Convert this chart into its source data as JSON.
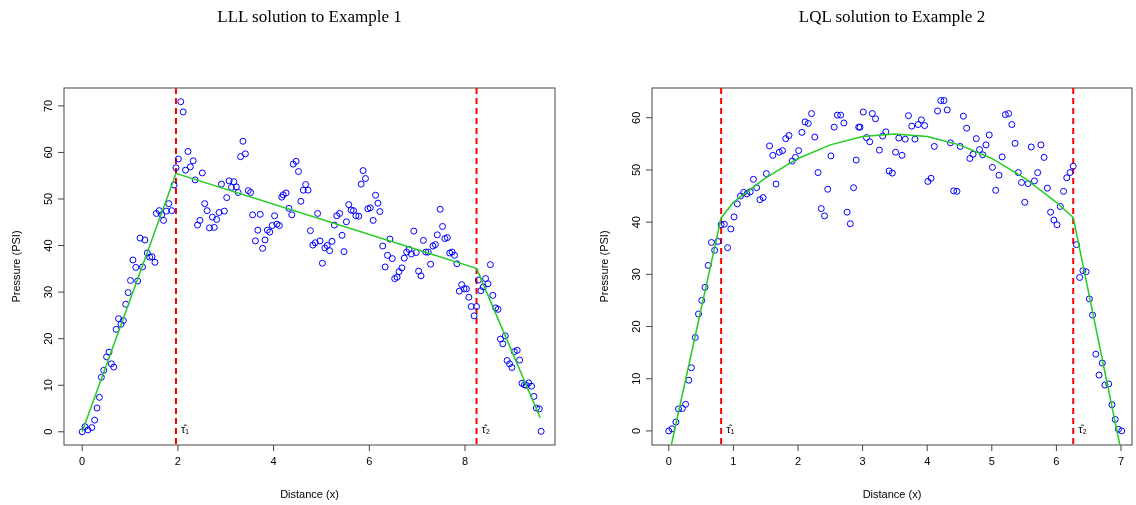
{
  "chart_data": [
    {
      "type": "scatter",
      "title": "LLL solution to Example 1",
      "xlabel": "Distance (x)",
      "ylabel": "Pressure (PSI)",
      "xlim": [
        -0.38,
        9.88
      ],
      "ylim": [
        -2.84,
        73.84
      ],
      "xticks": [
        0,
        2,
        4,
        6,
        8
      ],
      "yticks": [
        0,
        10,
        20,
        30,
        40,
        50,
        60,
        70
      ],
      "marker": "circle",
      "series": [
        {
          "color": "#0000ff",
          "x": [
            0,
            0.06,
            0.12,
            0.2,
            0.26,
            0.31,
            0.36,
            0.4,
            0.45,
            0.51,
            0.56,
            0.61,
            0.66,
            0.71,
            0.76,
            0.81,
            0.86,
            0.91,
            0.96,
            1.01,
            1.06,
            1.12,
            1.16,
            1.21,
            1.26,
            1.31,
            1.36,
            1.41,
            1.46,
            1.52,
            1.55,
            1.61,
            1.66,
            1.7,
            1.76,
            1.81,
            1.87,
            1.92,
            1.96,
            2.01,
            2.06,
            2.11,
            2.16,
            2.21,
            2.26,
            2.32,
            2.36,
            2.41,
            2.46,
            2.51,
            2.56,
            2.61,
            2.66,
            2.72,
            2.76,
            2.81,
            2.86,
            2.91,
            2.97,
            3.02,
            3.07,
            3.12,
            3.17,
            3.22,
            3.26,
            3.31,
            3.36,
            3.41,
            3.47,
            3.52,
            3.56,
            3.62,
            3.67,
            3.72,
            3.77,
            3.82,
            3.87,
            3.92,
            3.97,
            4.02,
            4.07,
            4.12,
            4.17,
            4.2,
            4.26,
            4.32,
            4.38,
            4.41,
            4.47,
            4.52,
            4.57,
            4.62,
            4.67,
            4.72,
            4.77,
            4.82,
            4.87,
            4.92,
            4.97,
            5.02,
            5.07,
            5.12,
            5.17,
            5.22,
            5.27,
            5.32,
            5.38,
            5.43,
            5.47,
            5.52,
            5.57,
            5.62,
            5.67,
            5.72,
            5.78,
            5.83,
            5.87,
            5.92,
            5.97,
            6.02,
            6.08,
            6.13,
            6.18,
            6.22,
            6.28,
            6.33,
            6.38,
            6.43,
            6.48,
            6.53,
            6.58,
            6.62,
            6.68,
            6.73,
            6.78,
            6.83,
            6.88,
            6.93,
            6.98,
            7.03,
            7.08,
            7.13,
            7.18,
            7.23,
            7.28,
            7.33,
            7.38,
            7.42,
            7.48,
            7.53,
            7.58,
            7.63,
            7.68,
            7.73,
            7.78,
            7.83,
            7.88,
            7.93,
            7.98,
            8.03,
            8.08,
            8.13,
            8.19,
            8.24,
            8.28,
            8.33,
            8.38,
            8.43,
            8.48,
            8.53,
            8.58,
            8.64,
            8.69,
            8.74,
            8.79,
            8.84,
            8.88,
            8.93,
            8.98,
            9.03,
            9.09,
            9.14,
            9.19,
            9.24,
            9.28,
            9.33,
            9.39,
            9.44,
            9.49,
            9.55,
            9.59
          ],
          "values": [
            0,
            1.1,
            0.4,
            0.9,
            2.5,
            5.1,
            7.4,
            11.7,
            13.2,
            16.1,
            17.1,
            14.6,
            13.9,
            22,
            24.3,
            23.1,
            23.9,
            27.4,
            29.9,
            32.5,
            36.9,
            35.3,
            32.4,
            41.6,
            35.4,
            41.2,
            38.4,
            37.5,
            37.6,
            36.4,
            46.9,
            47.5,
            46.6,
            45.4,
            47.4,
            49,
            47.5,
            53,
            56.7,
            58.6,
            70.9,
            68.7,
            56.2,
            60.2,
            56.9,
            58.2,
            54.1,
            44.4,
            45.4,
            55.6,
            49,
            47.5,
            43.8,
            46.1,
            43.9,
            45.6,
            47.1,
            53.2,
            47.4,
            50.3,
            53.9,
            52.5,
            53.7,
            52.6,
            51.4,
            59.1,
            62.4,
            59.7,
            51.8,
            51.4,
            46.6,
            41,
            43.3,
            46.7,
            39.4,
            41.2,
            43.3,
            42.9,
            44.3,
            46.4,
            44.6,
            44.3,
            50.4,
            50.9,
            51.3,
            48,
            46.6,
            57.5,
            58.1,
            55.9,
            49.5,
            51.9,
            53.1,
            51.9,
            43.2,
            40.1,
            40.6,
            46.9,
            41,
            36.2,
            39.5,
            40,
            38.9,
            40.9,
            44.4,
            46.4,
            46.9,
            42.2,
            38.7,
            45.1,
            48.8,
            47.6,
            47.5,
            46.4,
            46.3,
            53.2,
            56.1,
            54.4,
            47.9,
            48.1,
            45.4,
            50.8,
            49.1,
            47.3,
            39.9,
            35.4,
            37.9,
            41.4,
            37.2,
            32.9,
            33.2,
            34.4,
            35.2,
            37.3,
            38.6,
            39.2,
            38.2,
            43.1,
            38.5,
            34.5,
            33.5,
            41.1,
            38.6,
            38.6,
            36,
            39.9,
            40.2,
            42.3,
            47.8,
            44.1,
            41.5,
            41.7,
            38.4,
            38.6,
            37.9,
            36.1,
            30.2,
            31.6,
            30.7,
            30.7,
            28.9,
            26.9,
            24.9,
            26.9,
            32.6,
            30.3,
            31.1,
            32.9,
            31.8,
            35.9,
            29.3,
            26.6,
            26.3,
            19.9,
            18.9,
            20.6,
            15.3,
            14.6,
            13.8,
            17.2,
            17.5,
            15.4,
            10.4,
            10.1,
            10,
            10.5,
            9.8,
            7.6,
            5.1,
            4.9,
            0.1
          ]
        },
        {
          "type": "line",
          "color": "#22cc22",
          "marker": "none",
          "x": [
            0,
            1.96,
            8.24,
            9.57
          ],
          "values": [
            0,
            55.5,
            35.1,
            3
          ]
        }
      ],
      "ref_lines": [
        {
          "axis": "x",
          "value": 1.96,
          "label": "τ̂₁",
          "color": "#ff0000",
          "line_style": "dashed"
        },
        {
          "axis": "x",
          "value": 8.24,
          "label": "τ̂₂",
          "color": "#ff0000",
          "line_style": "dashed"
        }
      ]
    },
    {
      "type": "scatter",
      "title": "LQL solution to Example 2",
      "xlabel": "Distance (x)",
      "ylabel": "Pressure (PSI)",
      "xlim": [
        -0.26,
        7.17
      ],
      "ylim": [
        -2.7,
        65.7
      ],
      "xticks": [
        0,
        1,
        2,
        3,
        4,
        5,
        6,
        7
      ],
      "yticks": [
        0,
        10,
        20,
        30,
        40,
        50,
        60
      ],
      "marker": "circle",
      "series": [
        {
          "color": "#0000ff",
          "x": [
            0,
            0.05,
            0.11,
            0.15,
            0.21,
            0.26,
            0.31,
            0.35,
            0.41,
            0.46,
            0.51,
            0.56,
            0.61,
            0.66,
            0.71,
            0.76,
            0.81,
            0.86,
            0.91,
            0.96,
            1.01,
            1.06,
            1.11,
            1.16,
            1.21,
            1.26,
            1.31,
            1.36,
            1.41,
            1.46,
            1.51,
            1.56,
            1.61,
            1.66,
            1.71,
            1.76,
            1.81,
            1.86,
            1.91,
            1.96,
            2.01,
            2.06,
            2.11,
            2.16,
            2.21,
            2.26,
            2.31,
            2.36,
            2.41,
            2.46,
            2.51,
            2.56,
            2.61,
            2.66,
            2.71,
            2.76,
            2.81,
            2.86,
            2.9,
            2.94,
            2.96,
            3.01,
            3.06,
            3.11,
            3.15,
            3.2,
            3.26,
            3.31,
            3.36,
            3.41,
            3.46,
            3.51,
            3.56,
            3.61,
            3.66,
            3.71,
            3.76,
            3.81,
            3.86,
            3.91,
            3.96,
            4.01,
            4.06,
            4.11,
            4.16,
            4.21,
            4.26,
            4.31,
            4.36,
            4.41,
            4.46,
            4.51,
            4.56,
            4.61,
            4.66,
            4.71,
            4.76,
            4.81,
            4.86,
            4.91,
            4.96,
            5.01,
            5.06,
            5.11,
            5.16,
            5.21,
            5.26,
            5.31,
            5.36,
            5.41,
            5.46,
            5.51,
            5.56,
            5.61,
            5.66,
            5.71,
            5.76,
            5.81,
            5.86,
            5.91,
            5.96,
            6.01,
            6.06,
            6.11,
            6.16,
            6.21,
            6.26,
            6.31,
            6.36,
            6.41,
            6.46,
            6.51,
            6.56,
            6.61,
            6.66,
            6.71,
            6.75,
            6.81,
            6.86,
            6.91,
            6.96,
            7.01
          ],
          "values": [
            0,
            0.4,
            1.7,
            4.2,
            4.3,
            5.1,
            9.7,
            12.1,
            17.9,
            22.4,
            25,
            27.5,
            31.7,
            36.1,
            34.6,
            36.3,
            39.5,
            39.6,
            35.1,
            38.7,
            41,
            43.5,
            45,
            45.7,
            45.4,
            45.8,
            48.2,
            46.6,
            44.3,
            44.7,
            49.3,
            54.6,
            52.8,
            47.3,
            53.4,
            53.7,
            56,
            56.6,
            51.7,
            52.4,
            53.7,
            57.2,
            59.2,
            58.9,
            60.8,
            56.3,
            49.5,
            42.6,
            41.2,
            46.3,
            52.7,
            58.2,
            60.5,
            60.5,
            59,
            41.9,
            39.7,
            46.6,
            51.9,
            58.2,
            58.2,
            61.1,
            56.2,
            55.4,
            60.8,
            59.8,
            53.8,
            56.5,
            57.3,
            49.8,
            49.4,
            53.4,
            56.1,
            52.8,
            55.9,
            60.4,
            58.4,
            55.9,
            58.7,
            59.6,
            58.5,
            47.8,
            48.4,
            54.5,
            61.3,
            63.3,
            63.3,
            61.5,
            55.2,
            46,
            45.9,
            54.5,
            60.3,
            58,
            52.2,
            53,
            56,
            53.9,
            52.9,
            54.8,
            56.7,
            50.5,
            46.1,
            49,
            52.5,
            60.6,
            60.8,
            58.7,
            55.1,
            49.5,
            47.6,
            43.8,
            47.4,
            54.4,
            47.9,
            49.5,
            54.8,
            52.4,
            46.5,
            41.9,
            40.4,
            39.5,
            43,
            45.9,
            48.5,
            49.5,
            50.7,
            35.7,
            29.4,
            30.7,
            30.5,
            25.3,
            22.2,
            14.7,
            10.7,
            13,
            8.8,
            9,
            5,
            2.2,
            0.3,
            0
          ]
        },
        {
          "type": "line",
          "color": "#22cc22",
          "marker": "none",
          "x": [
            0.04,
            0.81,
            1,
            1.5,
            2,
            2.5,
            3,
            3.5,
            4,
            4.5,
            5,
            5.5,
            6,
            6.26,
            6.98
          ],
          "values": [
            -2.6,
            40.8,
            43.8,
            48.5,
            52.2,
            54.8,
            56.4,
            56.9,
            56.4,
            54.8,
            52.2,
            48.5,
            43.8,
            40.9,
            -2.6
          ]
        }
      ],
      "ref_lines": [
        {
          "axis": "x",
          "value": 0.81,
          "label": "τ̂₁",
          "color": "#ff0000",
          "line_style": "dashed"
        },
        {
          "axis": "x",
          "value": 6.26,
          "label": "τ̂₂",
          "color": "#ff0000",
          "line_style": "dashed"
        }
      ]
    }
  ]
}
